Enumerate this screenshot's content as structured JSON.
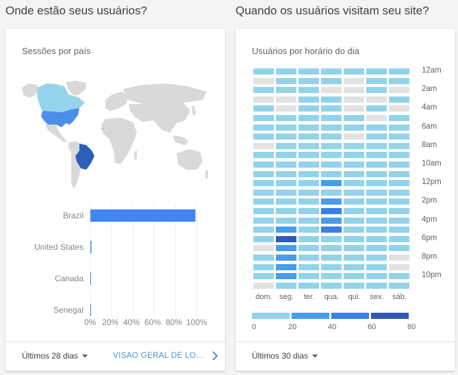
{
  "colors": {
    "brazil": "#2d5fb8",
    "usa": "#4a8ee8",
    "light": "#96d4ec",
    "land": "#d9d9d9",
    "bar": "#4285f4",
    "hm_empty": "#e2e2e2",
    "hm_l1": "#93d3ea",
    "hm_l2": "#479de8",
    "hm_l3": "#3a7fe6",
    "hm_l4": "#2e5ab5"
  },
  "left": {
    "section_title": "Onde estão seus usuários?",
    "card_title": "Sessões por país",
    "range_label": "Últimos 28 dias",
    "link_label": "VISÃO GERAL DE LOCAIS",
    "chart_data": {
      "type": "bar",
      "orientation": "horizontal",
      "categories": [
        "Brazil",
        "United States",
        "Canada",
        "Senegal"
      ],
      "values": [
        99,
        1,
        0,
        0
      ],
      "unit": "%",
      "xlim": [
        0,
        100
      ],
      "xticks": [
        "0%",
        "20%",
        "40%",
        "60%",
        "80%",
        "100%"
      ],
      "grid": true
    }
  },
  "right": {
    "section_title": "Quando os usuários visitam seu site?",
    "card_title": "Usuários por horário do dia",
    "range_label": "Últimos 30 dias",
    "chart_data": {
      "type": "heatmap",
      "x": [
        "dom.",
        "seg.",
        "ter.",
        "qua.",
        "qui.",
        "sex.",
        "sáb."
      ],
      "hours": [
        "12am",
        "1am",
        "2am",
        "3am",
        "4am",
        "5am",
        "6am",
        "7am",
        "8am",
        "9am",
        "10am",
        "11am",
        "12pm",
        "1pm",
        "2pm",
        "3pm",
        "4pm",
        "5pm",
        "6pm",
        "7pm",
        "8pm",
        "9pm",
        "10pm",
        "11pm"
      ],
      "hour_labels": [
        "12am",
        "2am",
        "4am",
        "6am",
        "8am",
        "10am",
        "12pm",
        "2pm",
        "4pm",
        "6pm",
        "8pm",
        "10pm"
      ],
      "scale_levels": [
        "0-20",
        "20-40",
        "40-60",
        "60-80"
      ],
      "legend_ticks": [
        "0",
        "20",
        "40",
        "60",
        "80"
      ],
      "levels": [
        [
          1,
          1,
          1,
          1,
          1,
          1,
          1
        ],
        [
          0,
          1,
          1,
          1,
          0,
          1,
          1
        ],
        [
          1,
          1,
          1,
          0,
          0,
          1,
          0
        ],
        [
          0,
          0,
          1,
          1,
          0,
          0,
          1
        ],
        [
          1,
          0,
          1,
          1,
          0,
          1,
          0
        ],
        [
          1,
          1,
          1,
          1,
          1,
          0,
          1
        ],
        [
          1,
          1,
          1,
          1,
          1,
          1,
          1
        ],
        [
          1,
          1,
          1,
          1,
          0,
          1,
          1
        ],
        [
          0,
          1,
          1,
          1,
          1,
          1,
          1
        ],
        [
          1,
          1,
          1,
          1,
          1,
          1,
          1
        ],
        [
          1,
          1,
          1,
          1,
          1,
          1,
          1
        ],
        [
          1,
          1,
          1,
          1,
          1,
          1,
          1
        ],
        [
          1,
          1,
          1,
          2,
          1,
          1,
          1
        ],
        [
          1,
          1,
          1,
          1,
          1,
          1,
          1
        ],
        [
          1,
          1,
          1,
          2,
          1,
          1,
          1
        ],
        [
          1,
          1,
          1,
          3,
          1,
          1,
          1
        ],
        [
          1,
          1,
          1,
          2,
          1,
          1,
          1
        ],
        [
          1,
          2,
          1,
          3,
          1,
          1,
          1
        ],
        [
          1,
          4,
          1,
          1,
          1,
          1,
          1
        ],
        [
          0,
          2,
          1,
          1,
          1,
          1,
          1
        ],
        [
          1,
          2,
          1,
          1,
          1,
          1,
          0
        ],
        [
          1,
          2,
          1,
          1,
          1,
          1,
          0
        ],
        [
          1,
          2,
          1,
          1,
          1,
          1,
          1
        ],
        [
          0,
          1,
          1,
          1,
          1,
          1,
          1
        ]
      ]
    }
  }
}
